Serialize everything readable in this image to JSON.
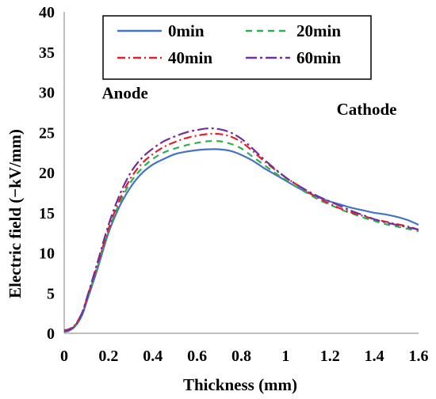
{
  "chart_data": {
    "type": "line",
    "xlabel": "Thickness (mm)",
    "ylabel": "Electric field  (−kV/mm)",
    "xlim": [
      0,
      1.6
    ],
    "ylim": [
      0,
      40
    ],
    "xticks": [
      "0",
      "0.2",
      "0.4",
      "0.6",
      "0.8",
      "1",
      "1.2",
      "1.4",
      "1.6"
    ],
    "yticks": [
      "0",
      "5",
      "10",
      "15",
      "20",
      "25",
      "30",
      "35",
      "40"
    ],
    "grid": false,
    "legend_position": "top",
    "annotations": [
      {
        "text": "Anode",
        "x": 0.17,
        "y": 29.2
      },
      {
        "text": "Cathode",
        "x": 1.23,
        "y": 27.2
      }
    ],
    "series": [
      {
        "name": "0min",
        "color": "#4472c4",
        "dash": "solid",
        "points": [
          [
            0.0,
            0.2
          ],
          [
            0.02,
            0.3
          ],
          [
            0.05,
            0.9
          ],
          [
            0.08,
            2.2
          ],
          [
            0.1,
            3.8
          ],
          [
            0.15,
            8.0
          ],
          [
            0.2,
            12.5
          ],
          [
            0.25,
            15.8
          ],
          [
            0.3,
            18.2
          ],
          [
            0.35,
            19.9
          ],
          [
            0.4,
            21.0
          ],
          [
            0.45,
            21.7
          ],
          [
            0.5,
            22.3
          ],
          [
            0.55,
            22.6
          ],
          [
            0.6,
            22.8
          ],
          [
            0.65,
            22.9
          ],
          [
            0.7,
            22.9
          ],
          [
            0.75,
            22.7
          ],
          [
            0.8,
            22.2
          ],
          [
            0.85,
            21.5
          ],
          [
            0.9,
            20.6
          ],
          [
            0.95,
            19.8
          ],
          [
            1.0,
            19.0
          ],
          [
            1.05,
            18.2
          ],
          [
            1.1,
            17.5
          ],
          [
            1.15,
            16.9
          ],
          [
            1.2,
            16.4
          ],
          [
            1.25,
            16.0
          ],
          [
            1.3,
            15.6
          ],
          [
            1.35,
            15.3
          ],
          [
            1.4,
            15.0
          ],
          [
            1.45,
            14.8
          ],
          [
            1.5,
            14.5
          ],
          [
            1.55,
            14.1
          ],
          [
            1.6,
            13.5
          ]
        ]
      },
      {
        "name": "20min",
        "color": "#2eb04a",
        "dash": "8,6",
        "points": [
          [
            0.0,
            0.3
          ],
          [
            0.02,
            0.4
          ],
          [
            0.05,
            1.0
          ],
          [
            0.08,
            2.4
          ],
          [
            0.1,
            4.0
          ],
          [
            0.15,
            8.3
          ],
          [
            0.2,
            12.8
          ],
          [
            0.25,
            16.2
          ],
          [
            0.3,
            18.8
          ],
          [
            0.35,
            20.5
          ],
          [
            0.4,
            21.7
          ],
          [
            0.45,
            22.5
          ],
          [
            0.5,
            23.0
          ],
          [
            0.55,
            23.4
          ],
          [
            0.6,
            23.7
          ],
          [
            0.65,
            23.9
          ],
          [
            0.7,
            23.9
          ],
          [
            0.75,
            23.6
          ],
          [
            0.8,
            23.0
          ],
          [
            0.85,
            22.0
          ],
          [
            0.9,
            21.0
          ],
          [
            0.95,
            20.0
          ],
          [
            1.0,
            19.1
          ],
          [
            1.05,
            18.2
          ],
          [
            1.1,
            17.4
          ],
          [
            1.15,
            16.6
          ],
          [
            1.2,
            16.0
          ],
          [
            1.25,
            15.4
          ],
          [
            1.3,
            14.9
          ],
          [
            1.35,
            14.4
          ],
          [
            1.4,
            14.0
          ],
          [
            1.45,
            13.6
          ],
          [
            1.5,
            13.3
          ],
          [
            1.55,
            13.0
          ],
          [
            1.6,
            12.7
          ]
        ]
      },
      {
        "name": "40min",
        "color": "#e0202a",
        "dash": "10,4,2,4",
        "points": [
          [
            0.0,
            0.4
          ],
          [
            0.02,
            0.5
          ],
          [
            0.05,
            1.1
          ],
          [
            0.08,
            2.5
          ],
          [
            0.1,
            4.1
          ],
          [
            0.15,
            8.5
          ],
          [
            0.2,
            13.0
          ],
          [
            0.25,
            16.6
          ],
          [
            0.3,
            19.3
          ],
          [
            0.35,
            21.1
          ],
          [
            0.4,
            22.3
          ],
          [
            0.45,
            23.2
          ],
          [
            0.5,
            23.8
          ],
          [
            0.55,
            24.3
          ],
          [
            0.6,
            24.6
          ],
          [
            0.65,
            24.8
          ],
          [
            0.7,
            24.8
          ],
          [
            0.75,
            24.5
          ],
          [
            0.8,
            23.8
          ],
          [
            0.85,
            22.7
          ],
          [
            0.9,
            21.5
          ],
          [
            0.95,
            20.4
          ],
          [
            1.0,
            19.4
          ],
          [
            1.05,
            18.5
          ],
          [
            1.1,
            17.6
          ],
          [
            1.15,
            16.8
          ],
          [
            1.2,
            16.1
          ],
          [
            1.25,
            15.5
          ],
          [
            1.3,
            15.0
          ],
          [
            1.35,
            14.6
          ],
          [
            1.4,
            14.2
          ],
          [
            1.45,
            13.9
          ],
          [
            1.5,
            13.6
          ],
          [
            1.55,
            13.3
          ],
          [
            1.6,
            12.9
          ]
        ]
      },
      {
        "name": "60min",
        "color": "#7030a0",
        "dash": "14,4,3,4",
        "points": [
          [
            0.0,
            0.3
          ],
          [
            0.02,
            0.4
          ],
          [
            0.05,
            1.0
          ],
          [
            0.08,
            2.5
          ],
          [
            0.1,
            4.2
          ],
          [
            0.15,
            8.8
          ],
          [
            0.2,
            13.5
          ],
          [
            0.25,
            17.2
          ],
          [
            0.3,
            20.0
          ],
          [
            0.35,
            21.8
          ],
          [
            0.4,
            23.0
          ],
          [
            0.45,
            23.9
          ],
          [
            0.5,
            24.5
          ],
          [
            0.55,
            25.0
          ],
          [
            0.6,
            25.3
          ],
          [
            0.65,
            25.5
          ],
          [
            0.7,
            25.4
          ],
          [
            0.75,
            25.0
          ],
          [
            0.8,
            24.2
          ],
          [
            0.85,
            23.0
          ],
          [
            0.9,
            21.7
          ],
          [
            0.95,
            20.5
          ],
          [
            1.0,
            19.4
          ],
          [
            1.05,
            18.5
          ],
          [
            1.1,
            17.7
          ],
          [
            1.15,
            17.0
          ],
          [
            1.2,
            16.4
          ],
          [
            1.25,
            15.8
          ],
          [
            1.3,
            15.2
          ],
          [
            1.35,
            14.7
          ],
          [
            1.4,
            14.2
          ],
          [
            1.45,
            13.8
          ],
          [
            1.5,
            13.5
          ],
          [
            1.55,
            13.2
          ],
          [
            1.6,
            12.9
          ]
        ]
      }
    ]
  }
}
